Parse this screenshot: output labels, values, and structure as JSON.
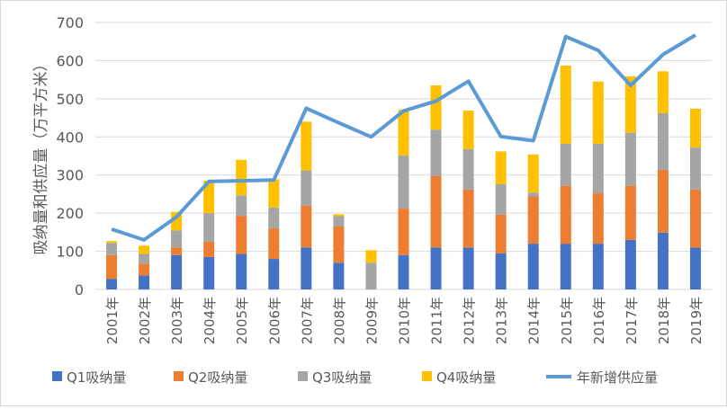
{
  "chart_data": {
    "type": "bar",
    "stacked": true,
    "title": "",
    "xlabel": "",
    "ylabel": "吸纳量和供应量（万平方米）",
    "ylim": [
      0,
      700
    ],
    "yticks": [
      0,
      100,
      200,
      300,
      400,
      500,
      600,
      700
    ],
    "grid": true,
    "legend_position": "bottom",
    "categories": [
      "2001年",
      "2002年",
      "2003年",
      "2004年",
      "2005年",
      "2006年",
      "2007年",
      "2008年",
      "2009年",
      "2010年",
      "2011年",
      "2012年",
      "2013年",
      "2014年",
      "2015年",
      "2016年",
      "2017年",
      "2018年",
      "2019年"
    ],
    "series": [
      {
        "name": "Q1吸纳量",
        "type": "bar",
        "color": "#4472c4",
        "values": [
          28,
          37,
          90,
          85,
          93,
          80,
          110,
          70,
          0,
          90,
          110,
          110,
          95,
          120,
          120,
          120,
          130,
          149,
          110
        ]
      },
      {
        "name": "Q2吸纳量",
        "type": "bar",
        "color": "#ed7d31",
        "values": [
          62,
          30,
          20,
          40,
          100,
          80,
          110,
          95,
          0,
          122,
          187,
          152,
          101,
          124,
          152,
          132,
          142,
          165,
          152
        ]
      },
      {
        "name": "Q3吸纳量",
        "type": "bar",
        "color": "#a5a5a5",
        "values": [
          32,
          26,
          45,
          75,
          54,
          55,
          92,
          27,
          70,
          139,
          122,
          106,
          80,
          10,
          110,
          130,
          139,
          148,
          110
        ]
      },
      {
        "name": "Q4吸纳量",
        "type": "bar",
        "color": "#ffc000",
        "values": [
          5,
          22,
          48,
          85,
          93,
          74,
          128,
          5,
          33,
          121,
          116,
          101,
          86,
          100,
          205,
          163,
          148,
          110,
          102
        ]
      },
      {
        "name": "年新增供应量",
        "type": "line",
        "color": "#5b9bd5",
        "values": [
          158,
          130,
          190,
          283,
          285,
          287,
          475,
          437,
          400,
          468,
          494,
          546,
          401,
          390,
          663,
          627,
          535,
          616,
          667
        ]
      }
    ]
  }
}
